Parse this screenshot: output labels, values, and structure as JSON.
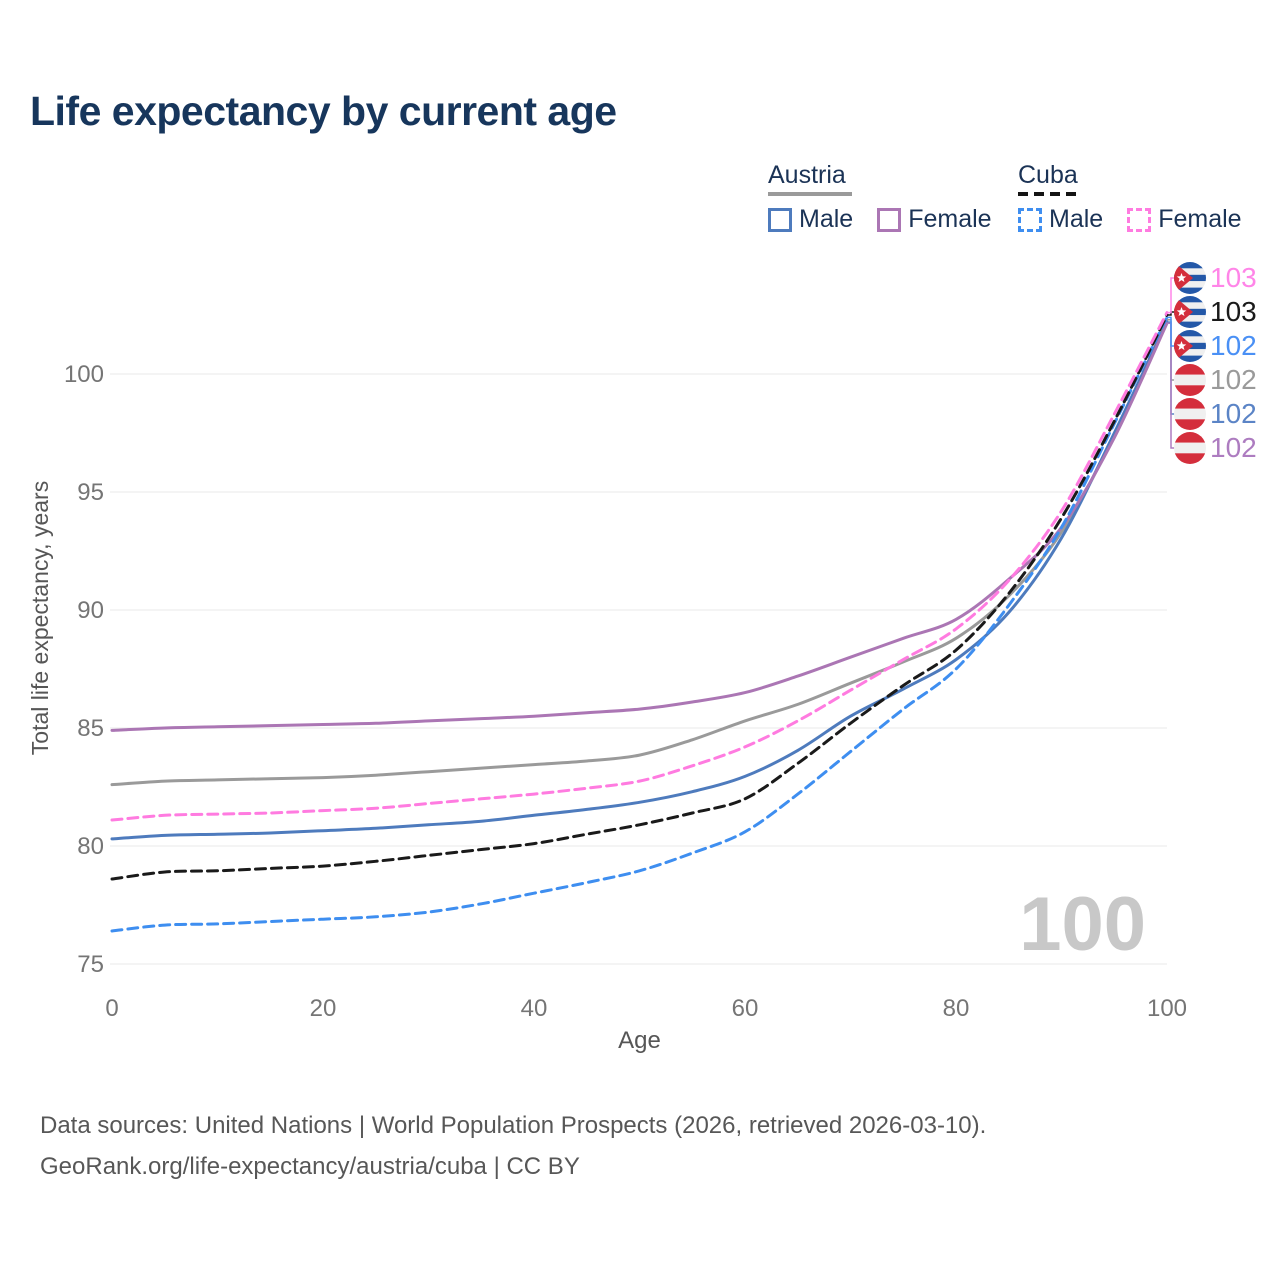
{
  "header": {
    "title": "Life expectancy by current age"
  },
  "legend": {
    "groups": [
      {
        "country": "Austria",
        "line_style": "solid",
        "underline_color": "#9a9a9a",
        "items": [
          {
            "label": "Male",
            "color": "#4e7bbd",
            "dashed": false
          },
          {
            "label": "Female",
            "color": "#ab76b4",
            "dashed": false
          }
        ]
      },
      {
        "country": "Cuba",
        "line_style": "dashed",
        "underline_color": "#141414",
        "items": [
          {
            "label": "Male",
            "color": "#3e8ef0",
            "dashed": true
          },
          {
            "label": "Female",
            "color": "#ff7be0",
            "dashed": true
          }
        ]
      }
    ]
  },
  "chart_data": {
    "type": "line",
    "title": "Life expectancy by current age",
    "xlabel": "Age",
    "ylabel": "Total life expectancy, years",
    "x_ticks": [
      0,
      20,
      40,
      60,
      80,
      100
    ],
    "y_ticks": [
      75,
      80,
      85,
      90,
      95,
      100
    ],
    "xlim": [
      0,
      100
    ],
    "ylim": [
      74,
      103.5
    ],
    "grid": true,
    "x": [
      0,
      5,
      10,
      15,
      20,
      25,
      30,
      35,
      40,
      45,
      50,
      55,
      60,
      65,
      70,
      75,
      80,
      85,
      90,
      95,
      100
    ],
    "series": [
      {
        "id": "austria-total",
        "name": "Austria",
        "country": "Austria",
        "sex": "Total",
        "color": "#9a9a9a",
        "dashed": false,
        "flag": "austria",
        "end_label": "102",
        "end_label_color": "#9a9a9a",
        "label_row": 3,
        "values": [
          82.6,
          82.75,
          82.8,
          82.85,
          82.9,
          83.0,
          83.15,
          83.3,
          83.45,
          83.6,
          83.85,
          84.5,
          85.3,
          86.0,
          86.9,
          87.8,
          88.8,
          90.6,
          93.3,
          97.4,
          102.3
        ]
      },
      {
        "id": "austria-male",
        "name": "Austria Male",
        "country": "Austria",
        "sex": "Male",
        "color": "#4e7bbd",
        "dashed": false,
        "flag": "austria",
        "end_label": "102",
        "end_label_color": "#5b84c6",
        "label_row": 4,
        "values": [
          80.3,
          80.45,
          80.5,
          80.55,
          80.65,
          80.75,
          80.9,
          81.05,
          81.3,
          81.55,
          81.85,
          82.3,
          82.95,
          84.05,
          85.5,
          86.65,
          87.9,
          89.9,
          93.05,
          97.5,
          102.2
        ]
      },
      {
        "id": "austria-female",
        "name": "Austria Female",
        "country": "Austria",
        "sex": "Female",
        "color": "#ab76b4",
        "dashed": false,
        "flag": "austria",
        "end_label": "102",
        "end_label_color": "#ad7cc0",
        "label_row": 5,
        "values": [
          84.9,
          85.0,
          85.05,
          85.1,
          85.15,
          85.2,
          85.3,
          85.4,
          85.5,
          85.65,
          85.8,
          86.1,
          86.5,
          87.2,
          88.0,
          88.8,
          89.6,
          91.3,
          93.5,
          97.3,
          102.15
        ]
      },
      {
        "id": "cuba-male",
        "name": "Cuba Male",
        "country": "Cuba",
        "sex": "Male",
        "color": "#3e8ef0",
        "dashed": true,
        "flag": "cuba",
        "end_label": "102",
        "end_label_color": "#4a90f5",
        "label_row": 2,
        "values": [
          76.4,
          76.65,
          76.7,
          76.8,
          76.9,
          77.0,
          77.2,
          77.55,
          78.0,
          78.45,
          78.95,
          79.7,
          80.6,
          82.2,
          84.0,
          85.8,
          87.5,
          90.2,
          93.5,
          97.9,
          102.4
        ]
      },
      {
        "id": "cuba-total",
        "name": "Cuba",
        "country": "Cuba",
        "sex": "Total",
        "color": "#1a1a1a",
        "dashed": true,
        "flag": "cuba",
        "end_label": "103",
        "end_label_color": "#1a1a1a",
        "label_row": 1,
        "values": [
          78.6,
          78.9,
          78.95,
          79.05,
          79.15,
          79.35,
          79.6,
          79.85,
          80.1,
          80.5,
          80.9,
          81.4,
          82.0,
          83.5,
          85.2,
          86.8,
          88.3,
          90.7,
          93.9,
          98.0,
          102.5
        ]
      },
      {
        "id": "cuba-female",
        "name": "Cuba Female",
        "country": "Cuba",
        "sex": "Female",
        "color": "#ff7be0",
        "dashed": true,
        "flag": "cuba",
        "end_label": "103",
        "end_label_color": "#ff85e8",
        "label_row": 0,
        "values": [
          81.1,
          81.3,
          81.35,
          81.4,
          81.5,
          81.6,
          81.8,
          82.0,
          82.2,
          82.45,
          82.75,
          83.4,
          84.2,
          85.3,
          86.6,
          87.9,
          89.2,
          91.25,
          94.2,
          98.3,
          102.6
        ]
      }
    ],
    "legend_position": "top-right",
    "hover_age_watermark": "100"
  },
  "colors": {
    "title": "#17365c",
    "axis_text": "#757575",
    "axis_title": "#565656",
    "gridline": "#e8e8e8",
    "watermark": "#c8c8c8",
    "flag_cuba_blue": "#2458a8",
    "flag_red": "#d42e3c",
    "flag_white": "#f0f0f0"
  },
  "footer": {
    "line1": "Data sources: United Nations | World Population Prospects (2026, retrieved 2026-03-10).",
    "line2": "GeoRank.org/life-expectancy/austria/cuba | CC BY"
  }
}
